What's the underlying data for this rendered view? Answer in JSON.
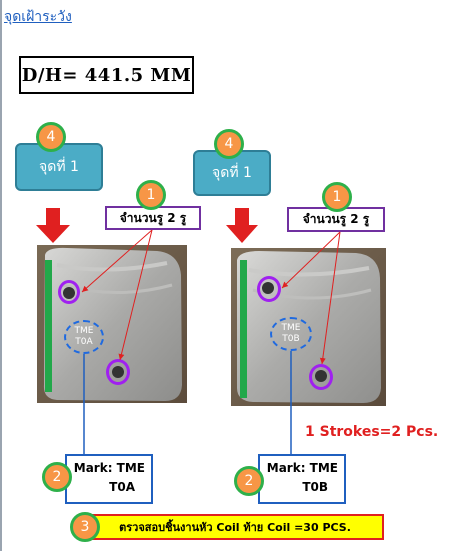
{
  "title": "จุดเฝ้าระวัง",
  "dh_label": "D/H= 441.5 MM",
  "left": {
    "step4_num": "4",
    "point_label": "จุดที่ 1",
    "step1_num": "1",
    "holes_label": "จำนวนรู 2 รู",
    "stamp_line1": "TME",
    "stamp_line2": "T0A",
    "step2_num": "2",
    "mark_line1": "Mark: TME",
    "mark_line2": "T0A"
  },
  "right": {
    "step4_num": "4",
    "point_label": "จุดที่ 1",
    "step1_num": "1",
    "holes_label": "จำนวนรู 2 รู",
    "stamp_line1": "TME",
    "stamp_line2": "T0B",
    "step2_num": "2",
    "mark_line1": "Mark: TME",
    "mark_line2": "T0B"
  },
  "strokes_note": "1 Strokes=2 Pcs.",
  "step3_num": "3",
  "inspect_note": "ตรวจสอบชิ้นงานหัว Coil ท้าย Coil =30 PCS.",
  "colors": {
    "orange_badge": "#f79646",
    "badge_ring": "#2eb04a",
    "point_box": "#4bacc6",
    "hole_ring": "#7030a0",
    "arrow_red": "#e02020",
    "mark_border": "#1f5fbf",
    "banner_fill": "#ffff00"
  }
}
